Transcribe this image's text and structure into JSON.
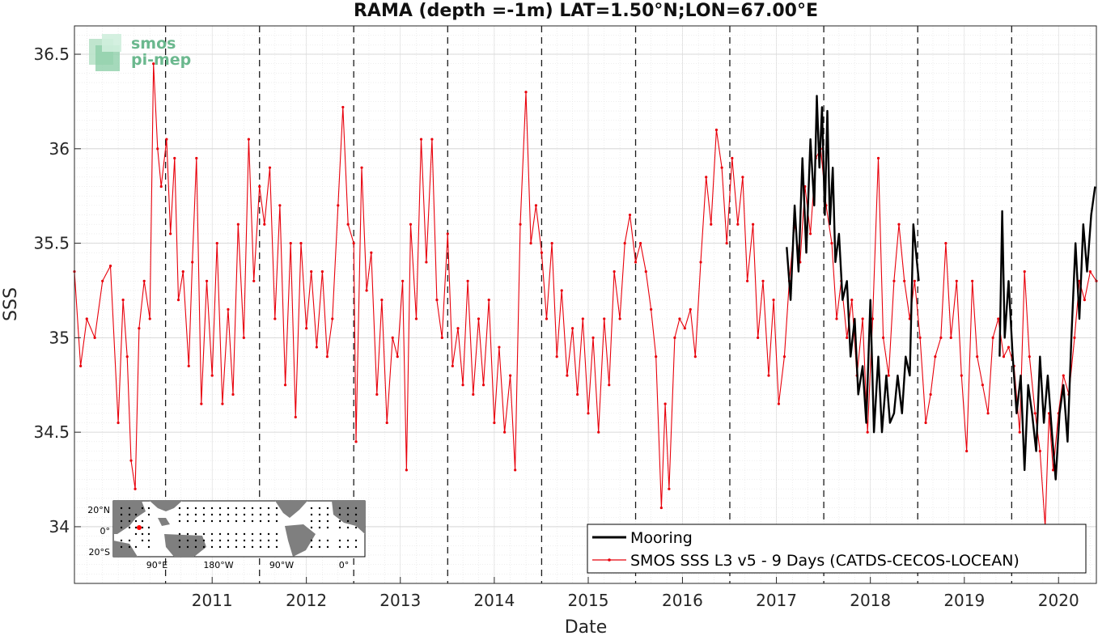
{
  "chart_data": {
    "type": "line",
    "title": "RAMA (depth =-1m) LAT=1.50°N;LON=67.00°E",
    "xlabel": "Date",
    "ylabel": "SSS",
    "xlim": [
      "2010-01-12",
      "2020-11-25"
    ],
    "ylim": [
      33.7,
      36.65
    ],
    "x_ticks": [
      "2011",
      "2012",
      "2013",
      "2014",
      "2015",
      "2016",
      "2017",
      "2018",
      "2019",
      "2020"
    ],
    "y_ticks": [
      34,
      34.5,
      35,
      35.5,
      36,
      36.5
    ],
    "y_tick_labels": [
      "34",
      "34.5",
      "35",
      "35.5",
      "36",
      "36.5"
    ],
    "grid": true,
    "minor_grid": true,
    "year_dividers": [
      "2011-01-01",
      "2012-01-01",
      "2013-01-01",
      "2014-01-01",
      "2015-01-01",
      "2016-01-01",
      "2017-01-01",
      "2018-01-01",
      "2019-01-01",
      "2020-01-01"
    ],
    "legend_position": "bottom-right",
    "series": [
      {
        "name": "Mooring",
        "color": "#000000",
        "style": "thick line",
        "points": [
          [
            "2017-08-10",
            35.48
          ],
          [
            "2017-08-25",
            35.2
          ],
          [
            "2017-09-10",
            35.7
          ],
          [
            "2017-09-25",
            35.35
          ],
          [
            "2017-10-10",
            35.95
          ],
          [
            "2017-10-25",
            35.45
          ],
          [
            "2017-11-10",
            36.05
          ],
          [
            "2017-11-25",
            35.7
          ],
          [
            "2017-12-05",
            36.28
          ],
          [
            "2017-12-15",
            35.9
          ],
          [
            "2017-12-25",
            36.22
          ],
          [
            "2018-01-05",
            35.65
          ],
          [
            "2018-01-15",
            36.2
          ],
          [
            "2018-01-25",
            35.6
          ],
          [
            "2018-02-05",
            35.9
          ],
          [
            "2018-02-15",
            35.4
          ],
          [
            "2018-03-01",
            35.55
          ],
          [
            "2018-03-15",
            35.2
          ],
          [
            "2018-04-01",
            35.3
          ],
          [
            "2018-04-15",
            34.9
          ],
          [
            "2018-05-01",
            35.1
          ],
          [
            "2018-05-15",
            34.7
          ],
          [
            "2018-06-01",
            34.85
          ],
          [
            "2018-06-15",
            34.55
          ],
          [
            "2018-07-01",
            35.2
          ],
          [
            "2018-07-15",
            34.5
          ],
          [
            "2018-08-01",
            34.9
          ],
          [
            "2018-08-15",
            34.5
          ],
          [
            "2018-09-01",
            34.8
          ],
          [
            "2018-09-15",
            34.55
          ],
          [
            "2018-10-01",
            34.6
          ],
          [
            "2018-10-15",
            34.8
          ],
          [
            "2018-11-01",
            34.6
          ],
          [
            "2018-11-15",
            34.9
          ],
          [
            "2018-12-01",
            34.8
          ],
          [
            "2018-12-15",
            35.6
          ],
          [
            "2019-01-05",
            35.3
          ]
        ],
        "segment2": [
          [
            "2019-11-15",
            34.9
          ],
          [
            "2019-11-25",
            35.67
          ],
          [
            "2019-12-05",
            35.0
          ],
          [
            "2019-12-20",
            35.3
          ],
          [
            "2020-01-05",
            34.9
          ],
          [
            "2020-01-20",
            34.6
          ],
          [
            "2020-02-05",
            34.8
          ],
          [
            "2020-02-20",
            34.3
          ],
          [
            "2020-03-05",
            34.75
          ],
          [
            "2020-03-20",
            34.6
          ],
          [
            "2020-04-05",
            34.4
          ],
          [
            "2020-04-20",
            34.9
          ],
          [
            "2020-05-05",
            34.55
          ],
          [
            "2020-05-20",
            34.8
          ],
          [
            "2020-06-05",
            34.5
          ],
          [
            "2020-06-20",
            34.25
          ],
          [
            "2020-07-05",
            34.6
          ],
          [
            "2020-07-20",
            34.75
          ],
          [
            "2020-08-05",
            34.45
          ],
          [
            "2020-08-20",
            35.0
          ],
          [
            "2020-09-05",
            35.5
          ],
          [
            "2020-09-20",
            35.1
          ],
          [
            "2020-10-05",
            35.6
          ],
          [
            "2020-10-20",
            35.35
          ],
          [
            "2020-11-05",
            35.65
          ],
          [
            "2020-11-20",
            35.8
          ]
        ]
      },
      {
        "name": "SMOS SSS L3 v5 - 9 Days (CATDS-CECOS-LOCEAN)",
        "color": "#e8000b",
        "style": "thin line with dots",
        "points": [
          [
            "2010-01-12",
            35.35
          ],
          [
            "2010-02-05",
            34.85
          ],
          [
            "2010-03-01",
            35.1
          ],
          [
            "2010-04-01",
            35.0
          ],
          [
            "2010-05-01",
            35.3
          ],
          [
            "2010-06-01",
            35.38
          ],
          [
            "2010-07-01",
            34.55
          ],
          [
            "2010-07-20",
            35.2
          ],
          [
            "2010-08-05",
            34.9
          ],
          [
            "2010-08-20",
            34.35
          ],
          [
            "2010-09-05",
            34.2
          ],
          [
            "2010-09-20",
            35.05
          ],
          [
            "2010-10-10",
            35.3
          ],
          [
            "2010-11-01",
            35.1
          ],
          [
            "2010-11-15",
            36.45
          ],
          [
            "2010-12-01",
            36.0
          ],
          [
            "2010-12-15",
            35.8
          ],
          [
            "2011-01-05",
            36.05
          ],
          [
            "2011-01-20",
            35.55
          ],
          [
            "2011-02-05",
            35.95
          ],
          [
            "2011-02-20",
            35.2
          ],
          [
            "2011-03-10",
            35.35
          ],
          [
            "2011-04-01",
            34.85
          ],
          [
            "2011-04-15",
            35.4
          ],
          [
            "2011-05-01",
            35.95
          ],
          [
            "2011-05-20",
            34.65
          ],
          [
            "2011-06-10",
            35.3
          ],
          [
            "2011-07-01",
            34.8
          ],
          [
            "2011-07-20",
            35.5
          ],
          [
            "2011-08-10",
            34.65
          ],
          [
            "2011-09-01",
            35.15
          ],
          [
            "2011-09-20",
            34.7
          ],
          [
            "2011-10-10",
            35.6
          ],
          [
            "2011-11-01",
            35.0
          ],
          [
            "2011-11-20",
            36.05
          ],
          [
            "2011-12-10",
            35.3
          ],
          [
            "2012-01-01",
            35.8
          ],
          [
            "2012-01-20",
            35.6
          ],
          [
            "2012-02-10",
            35.9
          ],
          [
            "2012-03-01",
            35.1
          ],
          [
            "2012-03-20",
            35.7
          ],
          [
            "2012-04-10",
            34.75
          ],
          [
            "2012-05-01",
            35.5
          ],
          [
            "2012-05-20",
            34.58
          ],
          [
            "2012-06-10",
            35.5
          ],
          [
            "2012-07-01",
            35.05
          ],
          [
            "2012-07-20",
            35.35
          ],
          [
            "2012-08-10",
            34.95
          ],
          [
            "2012-09-01",
            35.35
          ],
          [
            "2012-09-20",
            34.9
          ],
          [
            "2012-10-10",
            35.1
          ],
          [
            "2012-11-01",
            35.7
          ],
          [
            "2012-11-20",
            36.22
          ],
          [
            "2012-12-10",
            35.6
          ],
          [
            "2013-01-01",
            35.5
          ],
          [
            "2013-01-10",
            34.45
          ],
          [
            "2013-02-01",
            35.9
          ],
          [
            "2013-02-20",
            35.25
          ],
          [
            "2013-03-10",
            35.45
          ],
          [
            "2013-04-01",
            34.7
          ],
          [
            "2013-04-20",
            35.2
          ],
          [
            "2013-05-10",
            34.55
          ],
          [
            "2013-06-01",
            35.0
          ],
          [
            "2013-06-20",
            34.9
          ],
          [
            "2013-07-10",
            35.3
          ],
          [
            "2013-07-25",
            34.3
          ],
          [
            "2013-08-10",
            35.6
          ],
          [
            "2013-09-01",
            35.1
          ],
          [
            "2013-09-20",
            36.05
          ],
          [
            "2013-10-10",
            35.4
          ],
          [
            "2013-11-01",
            36.05
          ],
          [
            "2013-11-20",
            35.2
          ],
          [
            "2013-12-10",
            35.0
          ],
          [
            "2014-01-01",
            35.55
          ],
          [
            "2014-01-20",
            34.85
          ],
          [
            "2014-02-10",
            35.05
          ],
          [
            "2014-03-01",
            34.75
          ],
          [
            "2014-03-20",
            35.3
          ],
          [
            "2014-04-10",
            34.7
          ],
          [
            "2014-05-01",
            35.1
          ],
          [
            "2014-05-20",
            34.75
          ],
          [
            "2014-06-10",
            35.2
          ],
          [
            "2014-07-01",
            34.55
          ],
          [
            "2014-07-20",
            34.95
          ],
          [
            "2014-08-10",
            34.5
          ],
          [
            "2014-09-01",
            34.8
          ],
          [
            "2014-09-20",
            34.3
          ],
          [
            "2014-10-10",
            35.6
          ],
          [
            "2014-11-01",
            36.3
          ],
          [
            "2014-11-20",
            35.5
          ],
          [
            "2014-12-10",
            35.7
          ],
          [
            "2015-01-01",
            35.45
          ],
          [
            "2015-01-20",
            35.1
          ],
          [
            "2015-02-10",
            35.5
          ],
          [
            "2015-03-01",
            34.9
          ],
          [
            "2015-03-20",
            35.25
          ],
          [
            "2015-04-10",
            34.8
          ],
          [
            "2015-05-01",
            35.05
          ],
          [
            "2015-05-20",
            34.7
          ],
          [
            "2015-06-10",
            35.1
          ],
          [
            "2015-07-01",
            34.6
          ],
          [
            "2015-07-20",
            35.0
          ],
          [
            "2015-08-10",
            34.5
          ],
          [
            "2015-09-01",
            35.1
          ],
          [
            "2015-09-20",
            34.75
          ],
          [
            "2015-10-10",
            35.35
          ],
          [
            "2015-11-01",
            35.1
          ],
          [
            "2015-11-20",
            35.5
          ],
          [
            "2015-12-10",
            35.65
          ],
          [
            "2016-01-01",
            35.4
          ],
          [
            "2016-01-20",
            35.5
          ],
          [
            "2016-02-10",
            35.35
          ],
          [
            "2016-03-01",
            35.15
          ],
          [
            "2016-03-20",
            34.9
          ],
          [
            "2016-04-10",
            34.1
          ],
          [
            "2016-04-25",
            34.65
          ],
          [
            "2016-05-10",
            34.2
          ],
          [
            "2016-06-01",
            35.0
          ],
          [
            "2016-06-20",
            35.1
          ],
          [
            "2016-07-10",
            35.05
          ],
          [
            "2016-08-01",
            35.15
          ],
          [
            "2016-08-20",
            34.9
          ],
          [
            "2016-09-10",
            35.4
          ],
          [
            "2016-10-01",
            35.85
          ],
          [
            "2016-10-20",
            35.6
          ],
          [
            "2016-11-10",
            36.1
          ],
          [
            "2016-12-01",
            35.9
          ],
          [
            "2016-12-20",
            35.5
          ],
          [
            "2017-01-10",
            35.95
          ],
          [
            "2017-02-01",
            35.6
          ],
          [
            "2017-02-20",
            35.85
          ],
          [
            "2017-03-10",
            35.3
          ],
          [
            "2017-04-01",
            35.6
          ],
          [
            "2017-04-20",
            35.0
          ],
          [
            "2017-05-10",
            35.3
          ],
          [
            "2017-06-01",
            34.8
          ],
          [
            "2017-06-20",
            35.2
          ],
          [
            "2017-07-10",
            34.65
          ],
          [
            "2017-08-01",
            34.9
          ],
          [
            "2017-08-20",
            35.3
          ],
          [
            "2017-09-10",
            35.6
          ],
          [
            "2017-10-01",
            35.4
          ],
          [
            "2017-10-20",
            35.8
          ],
          [
            "2017-11-10",
            35.55
          ],
          [
            "2017-12-01",
            35.95
          ],
          [
            "2017-12-20",
            36.0
          ],
          [
            "2018-01-10",
            35.7
          ],
          [
            "2018-02-01",
            35.5
          ],
          [
            "2018-02-20",
            35.1
          ],
          [
            "2018-03-10",
            35.3
          ],
          [
            "2018-04-01",
            35.0
          ],
          [
            "2018-04-20",
            35.2
          ],
          [
            "2018-05-10",
            34.8
          ],
          [
            "2018-06-01",
            35.1
          ],
          [
            "2018-06-20",
            34.5
          ],
          [
            "2018-07-10",
            35.1
          ],
          [
            "2018-08-01",
            35.95
          ],
          [
            "2018-08-20",
            35.0
          ],
          [
            "2018-09-10",
            34.8
          ],
          [
            "2018-10-01",
            35.3
          ],
          [
            "2018-10-20",
            35.6
          ],
          [
            "2018-11-10",
            35.3
          ],
          [
            "2018-12-01",
            35.1
          ],
          [
            "2018-12-20",
            35.3
          ],
          [
            "2019-01-10",
            35.0
          ],
          [
            "2019-02-01",
            34.55
          ],
          [
            "2019-02-20",
            34.7
          ],
          [
            "2019-03-10",
            34.9
          ],
          [
            "2019-04-01",
            35.0
          ],
          [
            "2019-04-20",
            35.5
          ],
          [
            "2019-05-10",
            35.0
          ],
          [
            "2019-06-01",
            35.3
          ],
          [
            "2019-06-20",
            34.8
          ],
          [
            "2019-07-10",
            34.4
          ],
          [
            "2019-08-01",
            35.3
          ],
          [
            "2019-08-20",
            34.9
          ],
          [
            "2019-09-10",
            34.75
          ],
          [
            "2019-10-01",
            34.6
          ],
          [
            "2019-10-20",
            35.0
          ],
          [
            "2019-11-10",
            35.1
          ],
          [
            "2019-12-01",
            34.9
          ],
          [
            "2019-12-20",
            34.95
          ],
          [
            "2020-01-10",
            34.85
          ],
          [
            "2020-02-01",
            34.5
          ],
          [
            "2020-02-20",
            35.35
          ],
          [
            "2020-03-10",
            34.9
          ],
          [
            "2020-04-01",
            34.6
          ],
          [
            "2020-04-20",
            34.4
          ],
          [
            "2020-05-10",
            34.0
          ],
          [
            "2020-05-25",
            34.6
          ],
          [
            "2020-06-10",
            34.3
          ],
          [
            "2020-07-01",
            34.6
          ],
          [
            "2020-07-20",
            34.8
          ],
          [
            "2020-08-10",
            34.7
          ],
          [
            "2020-09-01",
            35.0
          ],
          [
            "2020-09-20",
            35.3
          ],
          [
            "2020-10-10",
            35.2
          ],
          [
            "2020-11-01",
            35.35
          ],
          [
            "2020-11-25",
            35.3
          ]
        ]
      }
    ],
    "annotations": {
      "logo": [
        "smos",
        "pi-mep"
      ],
      "inset_map": {
        "lat_labels": [
          "20°N",
          "0°",
          "20°S"
        ],
        "lon_labels": [
          "90°E",
          "180°W",
          "90°W",
          "0°"
        ]
      }
    }
  },
  "colors": {
    "mooring": "#000000",
    "smos": "#e8000b",
    "land": "#7f7f7f",
    "logo": "#6bb88e"
  }
}
